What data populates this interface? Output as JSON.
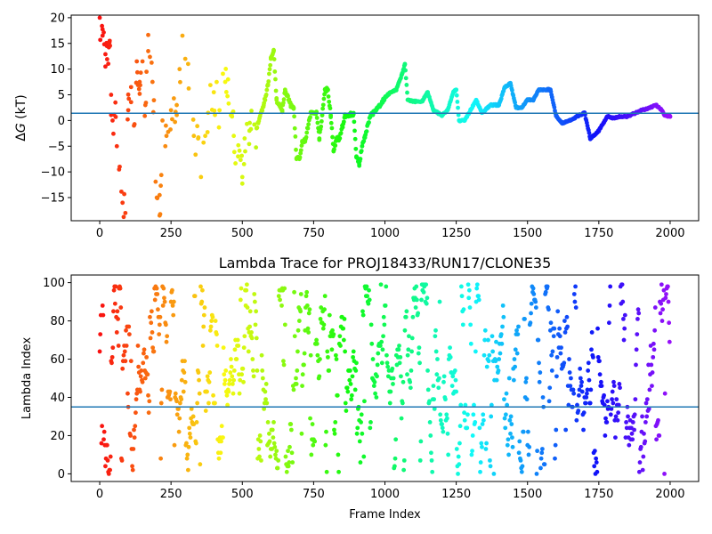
{
  "chart_data": [
    {
      "type": "scatter",
      "title": "",
      "xlabel": "",
      "ylabel": "ΔG (kT)",
      "ylabel_prefix": "Δ",
      "ylabel_italic": "G",
      "ylabel_suffix": " (kT)",
      "xlim": [
        -100,
        2100
      ],
      "ylim": [
        -19.5,
        20.5
      ],
      "xticks": [
        0,
        250,
        500,
        750,
        1000,
        1250,
        1500,
        1750,
        2000
      ],
      "xtick_labels": [
        "0",
        "250",
        "500",
        "750",
        "1000",
        "1250",
        "1500",
        "1750",
        "2000"
      ],
      "yticks": [
        -15,
        -10,
        -5,
        0,
        5,
        10,
        15,
        20
      ],
      "ytick_labels": [
        "−15",
        "−10",
        "−5",
        "0",
        "5",
        "10",
        "15",
        "20"
      ],
      "hline": 1.4,
      "hline_color": "#1f77b4",
      "colormap": "rainbow (red at frame 0 → violet at frame 2000)",
      "grid": false,
      "points_anchor": [
        [
          0,
          20
        ],
        [
          10,
          16.5
        ],
        [
          20,
          10.5
        ],
        [
          25,
          14.5
        ],
        [
          35,
          15.5
        ],
        [
          40,
          5
        ],
        [
          45,
          0
        ],
        [
          55,
          3.5
        ],
        [
          60,
          -5
        ],
        [
          70,
          -9
        ],
        [
          80,
          -16
        ],
        [
          90,
          -18
        ],
        [
          100,
          2
        ],
        [
          110,
          6.5
        ],
        [
          120,
          -1
        ],
        [
          130,
          11.5
        ],
        [
          140,
          7.5
        ],
        [
          150,
          11.5
        ],
        [
          160,
          3
        ],
        [
          170,
          13.5
        ],
        [
          185,
          7.5
        ],
        [
          200,
          -15
        ],
        [
          210,
          -18.5
        ],
        [
          220,
          0
        ],
        [
          230,
          -5
        ],
        [
          250,
          2
        ],
        [
          270,
          3
        ],
        [
          280,
          10
        ],
        [
          290,
          16.5
        ],
        [
          300,
          12
        ],
        [
          310,
          11
        ],
        [
          330,
          -3
        ],
        [
          345,
          -3.5
        ],
        [
          355,
          -11
        ],
        [
          370,
          -3
        ],
        [
          380,
          1.5
        ],
        [
          400,
          5.5
        ],
        [
          420,
          2
        ],
        [
          440,
          7.5
        ],
        [
          450,
          8
        ],
        [
          460,
          1
        ],
        [
          470,
          -3
        ],
        [
          485,
          -7
        ],
        [
          500,
          -11
        ],
        [
          510,
          -6
        ],
        [
          525,
          -2
        ],
        [
          550,
          -1.5
        ],
        [
          575,
          3
        ],
        [
          590,
          7
        ],
        [
          600,
          12
        ],
        [
          610,
          13.5
        ],
        [
          620,
          4
        ],
        [
          640,
          2
        ],
        [
          650,
          6
        ],
        [
          670,
          3
        ],
        [
          680,
          2.5
        ],
        [
          690,
          -7.5
        ],
        [
          700,
          -7.5
        ],
        [
          710,
          -4
        ],
        [
          720,
          -4
        ],
        [
          740,
          1.5
        ],
        [
          760,
          1.5
        ],
        [
          770,
          -3.5
        ],
        [
          780,
          1
        ],
        [
          790,
          6
        ],
        [
          800,
          6
        ],
        [
          810,
          1
        ],
        [
          820,
          -6
        ],
        [
          830,
          -3.5
        ],
        [
          840,
          -3.5
        ],
        [
          860,
          0.8
        ],
        [
          880,
          1.2
        ],
        [
          890,
          1.2
        ],
        [
          900,
          -7
        ],
        [
          910,
          -8.5
        ],
        [
          920,
          -5
        ],
        [
          930,
          -3
        ],
        [
          950,
          1
        ],
        [
          970,
          2
        ],
        [
          1000,
          4.5
        ],
        [
          1020,
          5.5
        ],
        [
          1040,
          6
        ],
        [
          1060,
          9
        ],
        [
          1070,
          11
        ],
        [
          1080,
          4
        ],
        [
          1100,
          3.7
        ],
        [
          1130,
          3.7
        ],
        [
          1150,
          5.5
        ],
        [
          1170,
          2
        ],
        [
          1200,
          1
        ],
        [
          1220,
          2
        ],
        [
          1240,
          5.5
        ],
        [
          1250,
          6
        ],
        [
          1260,
          0
        ],
        [
          1280,
          0
        ],
        [
          1300,
          2
        ],
        [
          1320,
          4
        ],
        [
          1340,
          1.5
        ],
        [
          1370,
          3
        ],
        [
          1400,
          3
        ],
        [
          1420,
          6.5
        ],
        [
          1440,
          7.2
        ],
        [
          1460,
          2.5
        ],
        [
          1480,
          2.5
        ],
        [
          1500,
          4
        ],
        [
          1520,
          4
        ],
        [
          1540,
          6
        ],
        [
          1560,
          6
        ],
        [
          1580,
          6
        ],
        [
          1600,
          1
        ],
        [
          1620,
          -0.5
        ],
        [
          1650,
          0
        ],
        [
          1680,
          1
        ],
        [
          1700,
          1.5
        ],
        [
          1720,
          -3.5
        ],
        [
          1750,
          -2
        ],
        [
          1780,
          0.8
        ],
        [
          1800,
          0.5
        ],
        [
          1830,
          0.8
        ],
        [
          1850,
          0.8
        ],
        [
          1880,
          1.5
        ],
        [
          1900,
          2
        ],
        [
          1930,
          2.5
        ],
        [
          1950,
          3
        ],
        [
          1970,
          2
        ],
        [
          1980,
          1
        ],
        [
          2000,
          0.8
        ]
      ]
    },
    {
      "type": "scatter",
      "title": "Lambda Trace for PROJ18433/RUN17/CLONE35",
      "xlabel": "Frame Index",
      "ylabel": "Lambda Index",
      "xlim": [
        -100,
        2100
      ],
      "ylim": [
        -4,
        104
      ],
      "xticks": [
        0,
        250,
        500,
        750,
        1000,
        1250,
        1500,
        1750,
        2000
      ],
      "xtick_labels": [
        "0",
        "250",
        "500",
        "750",
        "1000",
        "1250",
        "1500",
        "1750",
        "2000"
      ],
      "yticks": [
        0,
        20,
        40,
        60,
        80,
        100
      ],
      "ytick_labels": [
        "0",
        "20",
        "40",
        "60",
        "80",
        "100"
      ],
      "hline": 35,
      "hline_color": "#1f77b4",
      "colormap": "rainbow (red at frame 0 → violet at frame 2000)",
      "grid": false,
      "value_range": [
        0,
        99
      ],
      "n_points": 2000
    }
  ]
}
